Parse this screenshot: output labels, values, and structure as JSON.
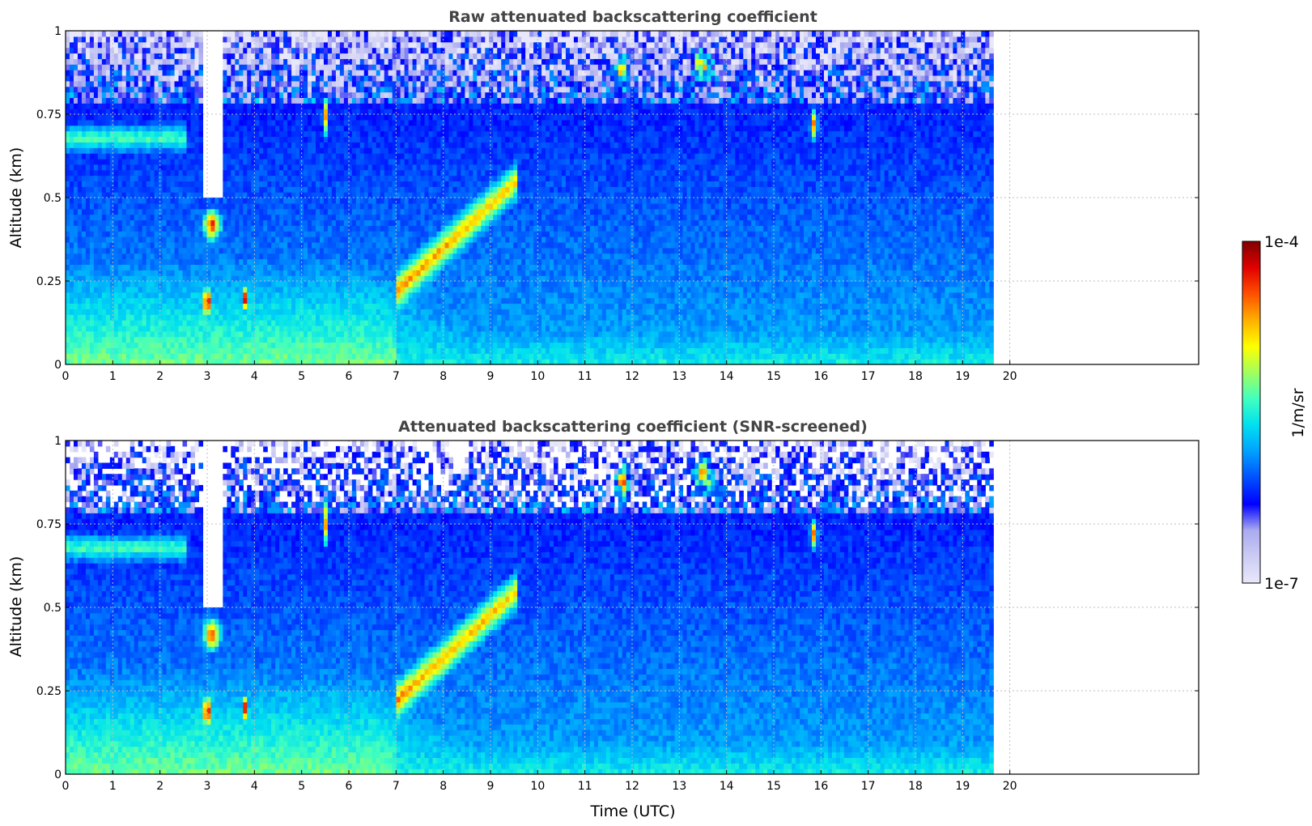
{
  "figure": {
    "colorbar": {
      "label": "1/m/sr",
      "min_label": "1e-7",
      "max_label": "1e-4",
      "colormap": "jet",
      "colors": [
        "#e8e8fa",
        "#ccccf4",
        "#aaaaf0",
        "#0000ff",
        "#0050ff",
        "#00a0ff",
        "#00e0f0",
        "#40ffc0",
        "#a0ff60",
        "#ffff00",
        "#ffb000",
        "#ff5000",
        "#e00000",
        "#800000"
      ]
    },
    "xlabel": "Time (UTC)"
  },
  "chart_data": [
    {
      "type": "heatmap",
      "title": "Raw attenuated backscattering coefficient",
      "xlabel": "",
      "ylabel": "Altitude (km)",
      "xlim": [
        0,
        24
      ],
      "ylim": [
        0,
        1
      ],
      "x_ticks": [
        0,
        1,
        2,
        3,
        4,
        5,
        6,
        7,
        8,
        9,
        10,
        11,
        12,
        13,
        14,
        15,
        16,
        17,
        18,
        19,
        20
      ],
      "y_ticks": [
        0,
        0.25,
        0.5,
        0.75,
        1
      ],
      "y_tick_labels": [
        "0",
        "0.25",
        "0.5",
        "0.75",
        "1"
      ],
      "data_extent_hours": [
        0,
        19.65
      ],
      "color_scale": "log",
      "grid": true,
      "snr_screened": false
    },
    {
      "type": "heatmap",
      "title": "Attenuated backscattering coefficient (SNR-screened)",
      "xlabel": "Time (UTC)",
      "ylabel": "Altitude (km)",
      "xlim": [
        0,
        24
      ],
      "ylim": [
        0,
        1
      ],
      "x_ticks": [
        0,
        1,
        2,
        3,
        4,
        5,
        6,
        7,
        8,
        9,
        10,
        11,
        12,
        13,
        14,
        15,
        16,
        17,
        18,
        19,
        20
      ],
      "y_ticks": [
        0,
        0.25,
        0.5,
        0.75,
        1
      ],
      "y_tick_labels": [
        "0",
        "0.25",
        "0.5",
        "0.75",
        "1"
      ],
      "data_extent_hours": [
        0,
        19.65
      ],
      "color_scale": "log",
      "grid": true,
      "snr_screened": true
    }
  ]
}
